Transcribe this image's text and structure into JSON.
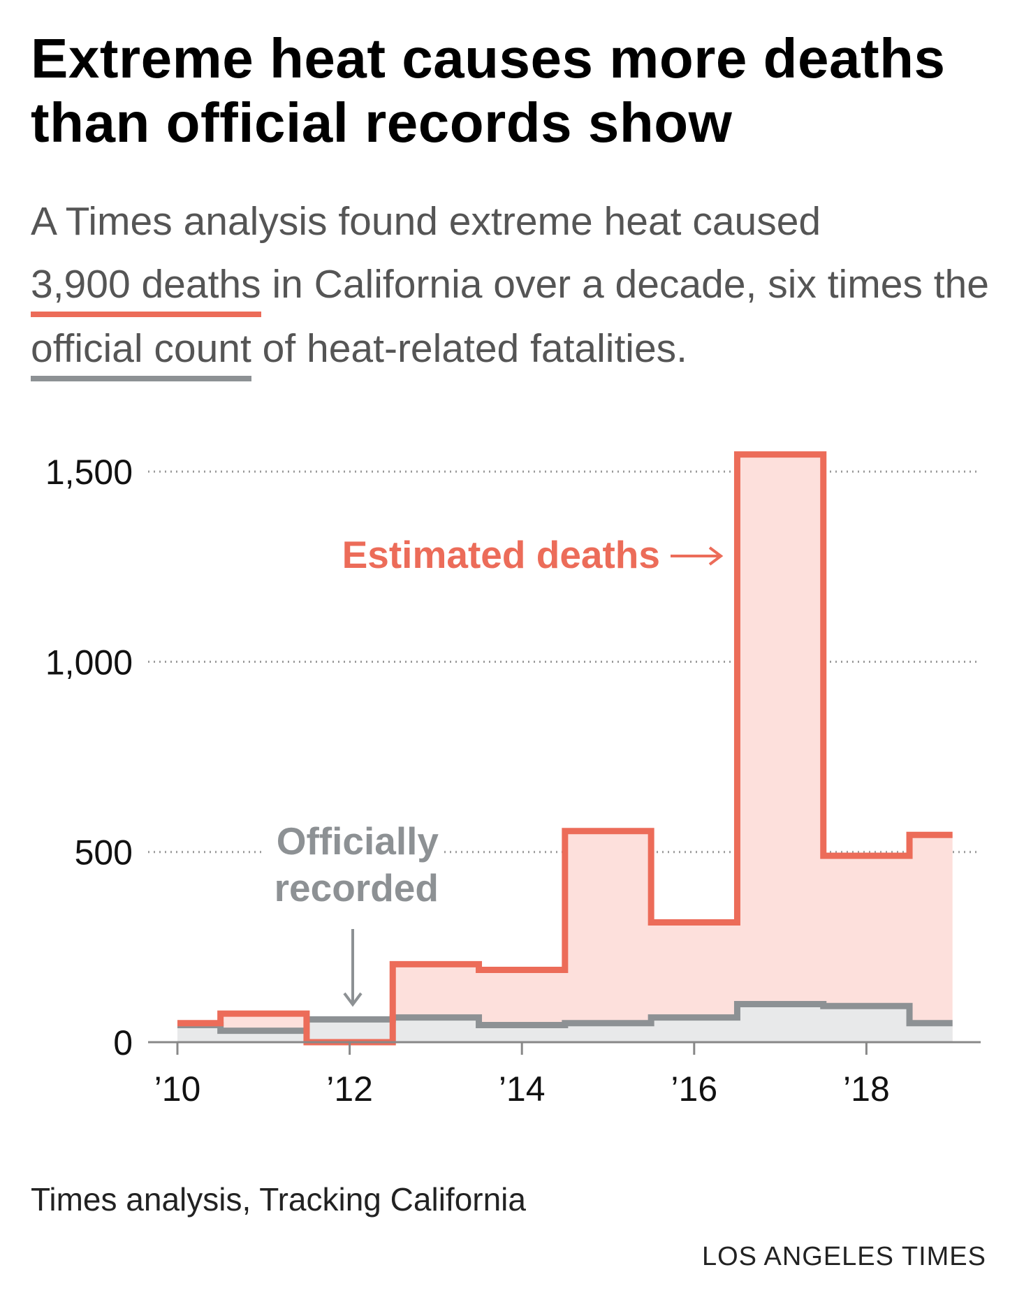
{
  "header": {
    "title": "Extreme heat causes more deaths than official records show",
    "subtitle_part1": "A Times analysis found extreme heat caused ",
    "subtitle_highlight1": "3,900 deaths",
    "subtitle_part2": " in California over a decade, six times the ",
    "subtitle_highlight2": "official count",
    "subtitle_part3": " of heat-related fatalities."
  },
  "footer": {
    "source": "Times analysis, Tracking California",
    "credit": "LOS ANGELES TIMES"
  },
  "colors": {
    "estimated": "#ec6c59",
    "estimated_fill": "#fde0dc",
    "official": "#8d9194",
    "official_fill": "#e8e9ea",
    "grid": "#999999"
  },
  "chart_data": {
    "type": "area",
    "step": true,
    "x": [
      2010,
      2011,
      2012,
      2013,
      2014,
      2015,
      2016,
      2017,
      2018,
      2019
    ],
    "x_tick_values": [
      2010,
      2012,
      2014,
      2016,
      2018
    ],
    "x_tick_labels": [
      "’10",
      "’12",
      "’14",
      "’16",
      "’18"
    ],
    "y_ticks": [
      0,
      500,
      1000,
      1500
    ],
    "y_tick_labels": [
      "0",
      "500",
      "1,000",
      "1,500"
    ],
    "ylim": [
      0,
      1550
    ],
    "grid": "horizontal dotted",
    "series": [
      {
        "name": "Estimated deaths",
        "values": [
          50,
          75,
          0,
          205,
          190,
          555,
          315,
          1545,
          490,
          545
        ]
      },
      {
        "name": "Officially recorded",
        "values": [
          45,
          30,
          60,
          65,
          45,
          50,
          65,
          100,
          95,
          50
        ]
      }
    ],
    "annotations": {
      "estimated": "Estimated deaths",
      "official_line1": "Officially",
      "official_line2": "recorded"
    }
  }
}
